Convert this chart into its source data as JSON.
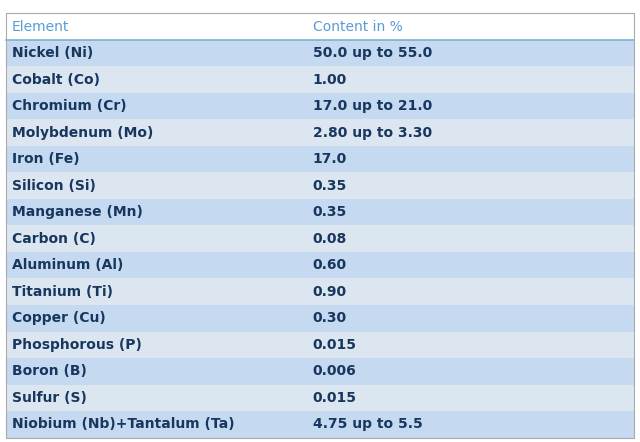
{
  "headers": [
    "Element",
    "Content in %"
  ],
  "rows": [
    [
      "Nickel (Ni)",
      "50.0 up to 55.0"
    ],
    [
      "Cobalt (Co)",
      "1.00"
    ],
    [
      "Chromium (Cr)",
      "17.0 up to 21.0"
    ],
    [
      "Molybdenum (Mo)",
      "2.80 up to 3.30"
    ],
    [
      "Iron (Fe)",
      "17.0"
    ],
    [
      "Silicon (Si)",
      "0.35"
    ],
    [
      "Manganese (Mn)",
      "0.35"
    ],
    [
      "Carbon (C)",
      "0.08"
    ],
    [
      "Aluminum (Al)",
      "0.60"
    ],
    [
      "Titanium (Ti)",
      "0.90"
    ],
    [
      "Copper (Cu)",
      "0.30"
    ],
    [
      "Phosphorous (P)",
      "0.015"
    ],
    [
      "Boron (B)",
      "0.006"
    ],
    [
      "Sulfur (S)",
      "0.015"
    ],
    [
      "Niobium (Nb)+Tantalum (Ta)",
      "4.75 up to 5.5"
    ]
  ],
  "header_bg": "#ffffff",
  "header_text_color": "#5b9bd5",
  "row_bg_dark": "#c5d9f1",
  "row_bg_light": "#dce6f1",
  "row_text_color": "#17375e",
  "font_size": 10,
  "header_font_size": 10,
  "col_split": 0.48,
  "fig_bg": "#ffffff",
  "outer_border_color": "#aaaaaa",
  "header_line_color": "#7bafd4"
}
